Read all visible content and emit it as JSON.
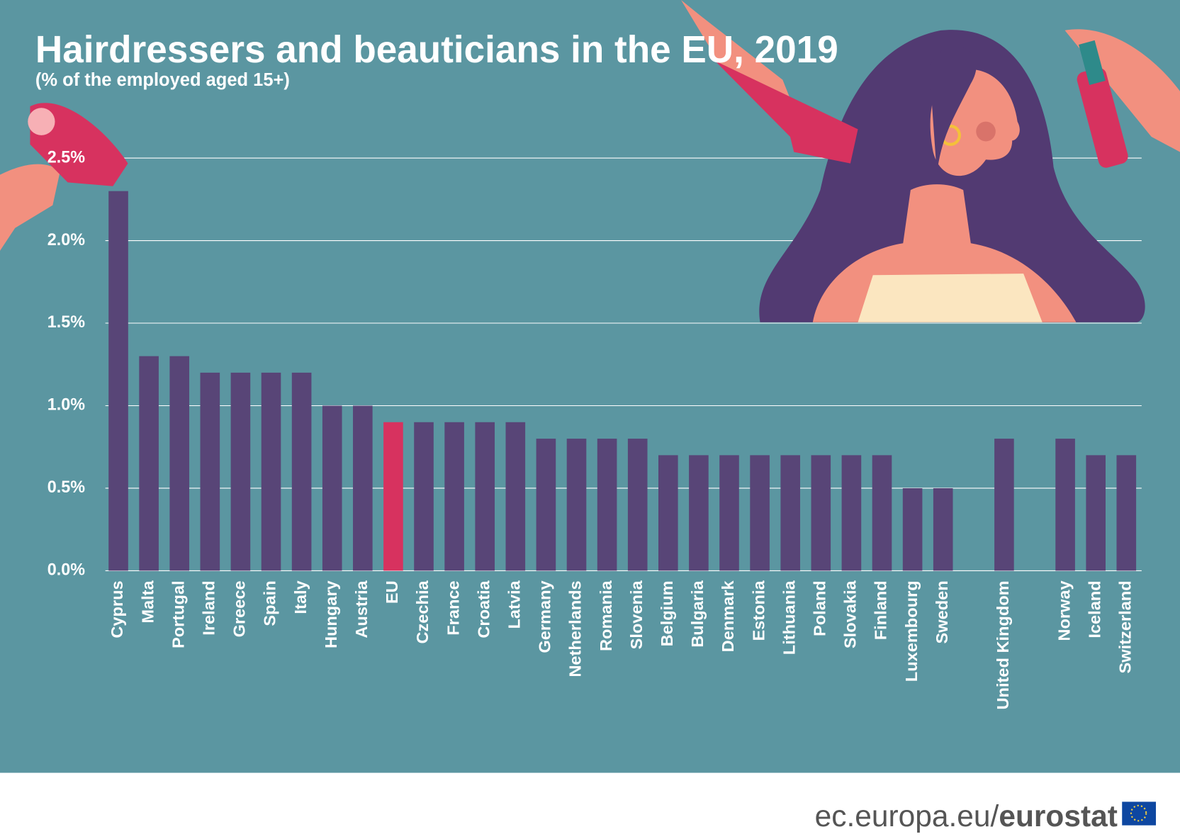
{
  "chart_data": {
    "type": "bar",
    "title": "Hairdressers and beauticians in the EU, 2019",
    "subtitle": "(% of the employed aged 15+)",
    "categories": [
      "Cyprus",
      "Malta",
      "Portugal",
      "Ireland",
      "Greece",
      "Spain",
      "Italy",
      "Hungary",
      "Austria",
      "EU",
      "Czechia",
      "France",
      "Croatia",
      "Latvia",
      "Germany",
      "Netherlands",
      "Romania",
      "Slovenia",
      "Belgium",
      "Bulgaria",
      "Denmark",
      "Estonia",
      "Lithuania",
      "Poland",
      "Slovakia",
      "Finland",
      "Luxembourg",
      "Sweden",
      null,
      "United Kingdom",
      null,
      "Norway",
      "Iceland",
      "Switzerland"
    ],
    "values": [
      2.3,
      1.3,
      1.3,
      1.2,
      1.2,
      1.2,
      1.2,
      1.0,
      1.0,
      0.9,
      0.9,
      0.9,
      0.9,
      0.9,
      0.8,
      0.8,
      0.8,
      0.8,
      0.7,
      0.7,
      0.7,
      0.7,
      0.7,
      0.7,
      0.7,
      0.7,
      0.5,
      0.5,
      null,
      0.8,
      null,
      0.8,
      0.7,
      0.7
    ],
    "colors": [
      "#584577",
      "#584577",
      "#584577",
      "#584577",
      "#584577",
      "#584577",
      "#584577",
      "#584577",
      "#584577",
      "#d7325f",
      "#584577",
      "#584577",
      "#584577",
      "#584577",
      "#584577",
      "#584577",
      "#584577",
      "#584577",
      "#584577",
      "#584577",
      "#584577",
      "#584577",
      "#584577",
      "#584577",
      "#584577",
      "#584577",
      "#584577",
      "#584577",
      null,
      "#584577",
      null,
      "#584577",
      "#584577",
      "#584577"
    ],
    "ylim": [
      0,
      2.5
    ],
    "yticks": [
      {
        "value": 0,
        "label": "0.0%"
      },
      {
        "value": 0.5,
        "label": "0.5%"
      },
      {
        "value": 1.0,
        "label": "1.0%"
      },
      {
        "value": 1.5,
        "label": "1.5%"
      },
      {
        "value": 2.0,
        "label": "2.0%"
      },
      {
        "value": 2.5,
        "label": "2.5%"
      }
    ],
    "grid": true
  },
  "footer": {
    "domain": "ec.europa.eu/",
    "brand": "eurostat"
  }
}
